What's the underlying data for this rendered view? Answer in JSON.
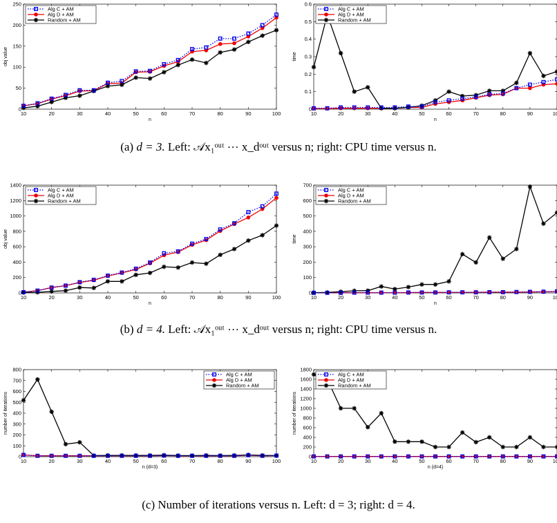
{
  "colors": {
    "alg_c": "#0000ee",
    "alg_d": "#ee0000",
    "random": "#000000"
  },
  "captions": {
    "a": {
      "prefix": "(a)",
      "math": "d = 3.",
      "text": "Left: 𝒜x₁ᵒᵘᵗ ⋯ x_dᵒᵘᵗ versus n; right: CPU time versus n."
    },
    "b": {
      "prefix": "(b)",
      "math": "d = 4.",
      "text": "Left: 𝒜x₁ᵒᵘᵗ ⋯ x_dᵒᵘᵗ versus n; right: CPU time versus n."
    },
    "c": {
      "prefix": "(c)",
      "text": "Number of iterations versus n. Left: d = 3; right: d = 4."
    }
  },
  "chart_data": [
    {
      "id": "a-left",
      "type": "line",
      "xlabel": "n",
      "ylabel": "obj value",
      "xlim": [
        10,
        100
      ],
      "ylim": [
        0,
        250
      ],
      "xticks": [
        10,
        20,
        30,
        40,
        50,
        60,
        70,
        80,
        90,
        100
      ],
      "yticks": [
        0,
        50,
        100,
        150,
        200,
        250
      ],
      "legend": "top-left",
      "x": [
        10,
        15,
        20,
        25,
        30,
        35,
        40,
        45,
        50,
        55,
        60,
        65,
        70,
        75,
        80,
        85,
        90,
        95,
        100
      ],
      "series": [
        {
          "name": "Alg C + AM",
          "values": [
            8,
            14,
            25,
            34,
            45,
            45,
            63,
            67,
            90,
            91,
            107,
            117,
            143,
            147,
            168,
            168,
            180,
            200,
            225
          ]
        },
        {
          "name": "Alg D + AM",
          "values": [
            8,
            13,
            24,
            32,
            43,
            44,
            61,
            62,
            88,
            89,
            103,
            113,
            137,
            140,
            155,
            157,
            173,
            193,
            218
          ]
        },
        {
          "name": "Random + AM",
          "values": [
            3,
            7,
            17,
            27,
            32,
            43,
            55,
            58,
            75,
            73,
            88,
            105,
            118,
            110,
            135,
            142,
            160,
            175,
            188
          ]
        }
      ]
    },
    {
      "id": "a-right",
      "type": "line",
      "xlabel": "n",
      "ylabel": "time",
      "xlim": [
        10,
        100
      ],
      "ylim": [
        0,
        0.6
      ],
      "xticks": [
        10,
        20,
        30,
        40,
        50,
        60,
        70,
        80,
        90,
        100
      ],
      "yticks": [
        0,
        0.1,
        0.2,
        0.3,
        0.4,
        0.5,
        0.6
      ],
      "legend": "top-left",
      "x": [
        10,
        15,
        20,
        25,
        30,
        35,
        40,
        45,
        50,
        55,
        60,
        65,
        70,
        75,
        80,
        85,
        90,
        95,
        100
      ],
      "series": [
        {
          "name": "Alg C + AM",
          "values": [
            0.005,
            0.005,
            0.01,
            0.01,
            0.01,
            0.01,
            0.01,
            0.015,
            0.015,
            0.04,
            0.05,
            0.06,
            0.07,
            0.085,
            0.09,
            0.12,
            0.14,
            0.155,
            0.17
          ]
        },
        {
          "name": "Alg D + AM",
          "values": [
            0.003,
            0.003,
            0.005,
            0.005,
            0.005,
            0.005,
            0.005,
            0.01,
            0.01,
            0.03,
            0.04,
            0.05,
            0.065,
            0.08,
            0.085,
            0.12,
            0.12,
            0.14,
            0.145
          ]
        },
        {
          "name": "Random + AM",
          "values": [
            0.24,
            0.54,
            0.32,
            0.1,
            0.125,
            0.005,
            0.005,
            0.01,
            0.02,
            0.05,
            0.1,
            0.075,
            0.08,
            0.105,
            0.105,
            0.15,
            0.32,
            0.19,
            0.215
          ]
        }
      ]
    },
    {
      "id": "b-left",
      "type": "line",
      "xlabel": "n",
      "ylabel": "obj value",
      "xlim": [
        10,
        100
      ],
      "ylim": [
        0,
        1400
      ],
      "xticks": [
        10,
        20,
        30,
        40,
        50,
        60,
        70,
        80,
        90,
        100
      ],
      "yticks": [
        0,
        200,
        400,
        600,
        800,
        1000,
        1200,
        1400
      ],
      "legend": "top-left",
      "x": [
        10,
        15,
        20,
        25,
        30,
        35,
        40,
        45,
        50,
        55,
        60,
        65,
        70,
        75,
        80,
        85,
        90,
        95,
        100
      ],
      "series": [
        {
          "name": "Alg C + AM",
          "values": [
            10,
            30,
            70,
            95,
            140,
            170,
            225,
            265,
            315,
            395,
            515,
            540,
            640,
            700,
            825,
            905,
            1050,
            1125,
            1290
          ]
        },
        {
          "name": "Alg D + AM",
          "values": [
            10,
            30,
            70,
            95,
            135,
            165,
            220,
            260,
            305,
            385,
            490,
            530,
            625,
            685,
            805,
            895,
            980,
            1090,
            1235
          ]
        },
        {
          "name": "Random + AM",
          "values": [
            5,
            8,
            20,
            30,
            70,
            65,
            150,
            150,
            235,
            260,
            340,
            330,
            395,
            380,
            495,
            570,
            680,
            750,
            875
          ]
        }
      ]
    },
    {
      "id": "b-right",
      "type": "line",
      "xlabel": "n",
      "ylabel": "time",
      "xlim": [
        10,
        100
      ],
      "ylim": [
        0,
        700
      ],
      "xticks": [
        10,
        20,
        30,
        40,
        50,
        60,
        70,
        80,
        90,
        100
      ],
      "yticks": [
        0,
        100,
        200,
        300,
        400,
        500,
        600,
        700
      ],
      "legend": "top-left",
      "x": [
        10,
        15,
        20,
        25,
        30,
        35,
        40,
        45,
        50,
        55,
        60,
        65,
        70,
        75,
        80,
        85,
        90,
        95,
        100
      ],
      "series": [
        {
          "name": "Alg C + AM",
          "values": [
            1,
            1,
            1,
            2,
            2,
            2,
            2,
            3,
            3,
            3,
            4,
            4,
            4,
            5,
            5,
            6,
            7,
            8,
            10
          ]
        },
        {
          "name": "Alg D + AM",
          "values": [
            1,
            1,
            1,
            2,
            2,
            2,
            2,
            2,
            3,
            3,
            3,
            4,
            4,
            5,
            5,
            5,
            6,
            7,
            9
          ]
        },
        {
          "name": "Random + AM",
          "values": [
            2,
            3,
            8,
            14,
            15,
            42,
            25,
            38,
            55,
            55,
            75,
            252,
            198,
            360,
            222,
            285,
            690,
            450,
            522
          ]
        }
      ]
    },
    {
      "id": "c-left",
      "type": "line",
      "xlabel": "n (d=3)",
      "ylabel": "number of iterations",
      "xlim": [
        10,
        100
      ],
      "ylim": [
        0,
        800
      ],
      "xticks": [
        10,
        20,
        30,
        40,
        50,
        60,
        70,
        80,
        90,
        100
      ],
      "yticks": [
        0,
        100,
        200,
        300,
        400,
        500,
        600,
        700,
        800
      ],
      "legend": "top-right",
      "x": [
        10,
        15,
        20,
        25,
        30,
        35,
        40,
        45,
        50,
        55,
        60,
        65,
        70,
        75,
        80,
        85,
        90,
        95,
        100
      ],
      "series": [
        {
          "name": "Alg C + AM",
          "values": [
            16,
            8,
            8,
            8,
            8,
            8,
            8,
            8,
            8,
            8,
            10,
            8,
            8,
            8,
            8,
            8,
            14,
            8,
            10
          ]
        },
        {
          "name": "Alg D + AM",
          "values": [
            16,
            8,
            8,
            8,
            8,
            8,
            8,
            8,
            8,
            8,
            10,
            8,
            8,
            8,
            8,
            8,
            14,
            8,
            10
          ]
        },
        {
          "name": "Random + AM",
          "values": [
            518,
            710,
            413,
            115,
            132,
            10,
            12,
            12,
            12,
            12,
            14,
            10,
            10,
            12,
            10,
            12,
            16,
            12,
            10
          ]
        }
      ]
    },
    {
      "id": "c-right",
      "type": "line",
      "xlabel": "n (d=4)",
      "ylabel": "number of iterations",
      "xlim": [
        10,
        100
      ],
      "ylim": [
        0,
        1800
      ],
      "xticks": [
        10,
        20,
        30,
        40,
        50,
        60,
        70,
        80,
        90,
        100
      ],
      "yticks": [
        0,
        200,
        400,
        600,
        800,
        1000,
        1200,
        1400,
        1600,
        1800
      ],
      "legend": "top-left",
      "x": [
        10,
        15,
        20,
        25,
        30,
        35,
        40,
        45,
        50,
        55,
        60,
        65,
        70,
        75,
        80,
        85,
        90,
        95,
        100
      ],
      "series": [
        {
          "name": "Alg C + AM",
          "values": [
            5,
            5,
            5,
            5,
            5,
            5,
            5,
            5,
            5,
            5,
            5,
            5,
            5,
            5,
            5,
            5,
            5,
            5,
            5
          ]
        },
        {
          "name": "Alg D + AM",
          "values": [
            5,
            5,
            5,
            5,
            5,
            5,
            5,
            5,
            5,
            5,
            5,
            5,
            5,
            5,
            5,
            5,
            5,
            5,
            5
          ]
        },
        {
          "name": "Random + AM",
          "values": [
            1700,
            1600,
            1000,
            1000,
            610,
            900,
            310,
            310,
            310,
            200,
            200,
            500,
            300,
            400,
            200,
            200,
            400,
            200,
            200
          ]
        }
      ]
    }
  ]
}
